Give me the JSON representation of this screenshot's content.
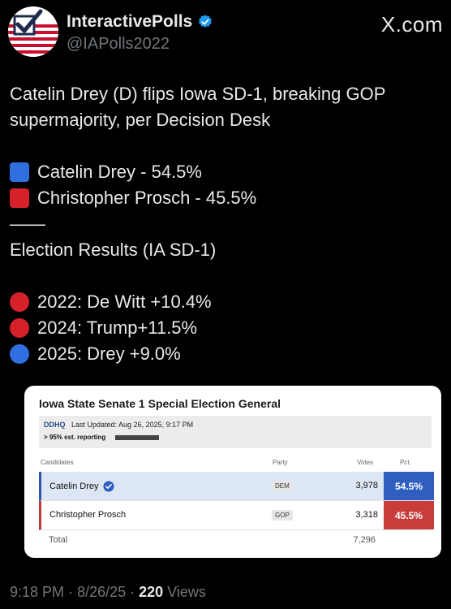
{
  "profile": {
    "display_name": "InteractivePolls",
    "handle": "@IAPolls2022",
    "site": "X.com"
  },
  "tweet": {
    "headline_line1": "Catelin Drey (D) flips Iowa SD-1, breaking GOP",
    "headline_line2": "supermajority, per Decision Desk",
    "result_dem": "Catelin Drey - 54.5%",
    "result_gop": "Christopher Prosch - 45.5%",
    "divider": "——",
    "history_title": "Election Results (IA SD-1)",
    "history": [
      {
        "label": "2022: De Witt +10.4%",
        "color": "#d6212b"
      },
      {
        "label": "2024: Trump+11.5%",
        "color": "#d6212b"
      },
      {
        "label": "2025: Drey +9.0%",
        "color": "#2f6fe0"
      }
    ]
  },
  "card": {
    "title": "Iowa State Senate 1 Special Election General",
    "source": "DDHQ",
    "last_updated": "Last Updated: Aug 26, 2025, 9:17 PM",
    "reporting": "> 95% est. reporting",
    "columns": {
      "candidates": "Candidates",
      "party": "Party",
      "votes": "Votes",
      "pct": "Pct."
    },
    "rows": [
      {
        "candidate": "Catelin Drey",
        "party": "DEM",
        "votes": "3,978",
        "pct": "54.5%",
        "winner": true
      },
      {
        "candidate": "Christopher Prosch",
        "party": "GOP",
        "votes": "3,318",
        "pct": "45.5%",
        "winner": false
      }
    ],
    "total_label": "Total",
    "total_votes": "7,296"
  },
  "meta": {
    "time": "9:18 PM",
    "date": "8/26/25",
    "views_count": "220",
    "views_label": "Views"
  },
  "colors": {
    "dem_blue": "#2f5dc0",
    "gop_red": "#c93c3c",
    "verified_blue": "#1d9bf0"
  }
}
